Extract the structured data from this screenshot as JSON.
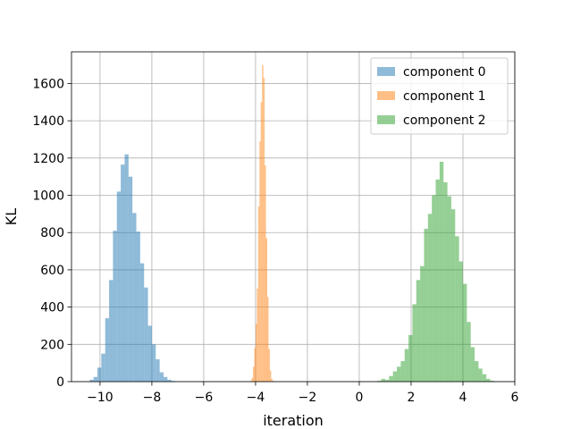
{
  "chart_data": {
    "type": "bar",
    "title": "",
    "xlabel": "iteration",
    "ylabel": "KL",
    "xlim": [
      -11.1,
      6.0
    ],
    "ylim": [
      0,
      1770
    ],
    "xticks": [
      -10,
      -8,
      -6,
      -4,
      -2,
      0,
      2,
      4,
      6
    ],
    "xtick_labels": [
      "−10",
      "−8",
      "−6",
      "−4",
      "−2",
      "0",
      "2",
      "4",
      "6"
    ],
    "yticks": [
      0,
      200,
      400,
      600,
      800,
      1000,
      1200,
      1400,
      1600
    ],
    "ytick_labels": [
      "0",
      "200",
      "400",
      "600",
      "800",
      "1000",
      "1200",
      "1400",
      "1600"
    ],
    "grid": true,
    "legend_position": "top-right",
    "series": [
      {
        "name": "component 0",
        "color": "#1f77b4",
        "opacity": 0.5,
        "bin_edges": [
          -10.4,
          -10.25,
          -10.1,
          -9.95,
          -9.8,
          -9.65,
          -9.5,
          -9.35,
          -9.2,
          -9.05,
          -8.9,
          -8.75,
          -8.6,
          -8.45,
          -8.3,
          -8.15,
          -8.0,
          -7.85,
          -7.7,
          -7.55,
          -7.4,
          -7.25,
          -7.1
        ],
        "counts": [
          10,
          25,
          75,
          150,
          340,
          545,
          810,
          1020,
          1165,
          1220,
          1100,
          905,
          805,
          635,
          505,
          300,
          200,
          120,
          50,
          25,
          10,
          4
        ]
      },
      {
        "name": "component 1",
        "color": "#ff7f0e",
        "opacity": 0.5,
        "bin_edges": [
          -4.2,
          -4.15,
          -4.1,
          -4.05,
          -4.0,
          -3.95,
          -3.9,
          -3.85,
          -3.8,
          -3.75,
          -3.7,
          -3.65,
          -3.6,
          -3.55,
          -3.5,
          -3.45,
          -3.4,
          -3.35,
          -3.3,
          -3.25
        ],
        "counts": [
          5,
          20,
          80,
          180,
          310,
          500,
          940,
          1290,
          1500,
          1700,
          1630,
          1160,
          770,
          455,
          175,
          60,
          15,
          5,
          2
        ]
      },
      {
        "name": "component 2",
        "color": "#2ca02c",
        "opacity": 0.5,
        "bin_edges": [
          0.7,
          0.85,
          1.0,
          1.15,
          1.3,
          1.45,
          1.6,
          1.75,
          1.9,
          2.05,
          2.2,
          2.35,
          2.5,
          2.65,
          2.8,
          2.95,
          3.1,
          3.25,
          3.4,
          3.55,
          3.7,
          3.85,
          4.0,
          4.15,
          4.3,
          4.45,
          4.6,
          4.75,
          4.9,
          5.05,
          5.2
        ],
        "counts": [
          5,
          15,
          10,
          30,
          55,
          80,
          110,
          175,
          250,
          415,
          545,
          620,
          820,
          900,
          1000,
          1085,
          1180,
          1070,
          995,
          925,
          780,
          645,
          525,
          320,
          185,
          110,
          70,
          40,
          15,
          5
        ]
      }
    ]
  }
}
